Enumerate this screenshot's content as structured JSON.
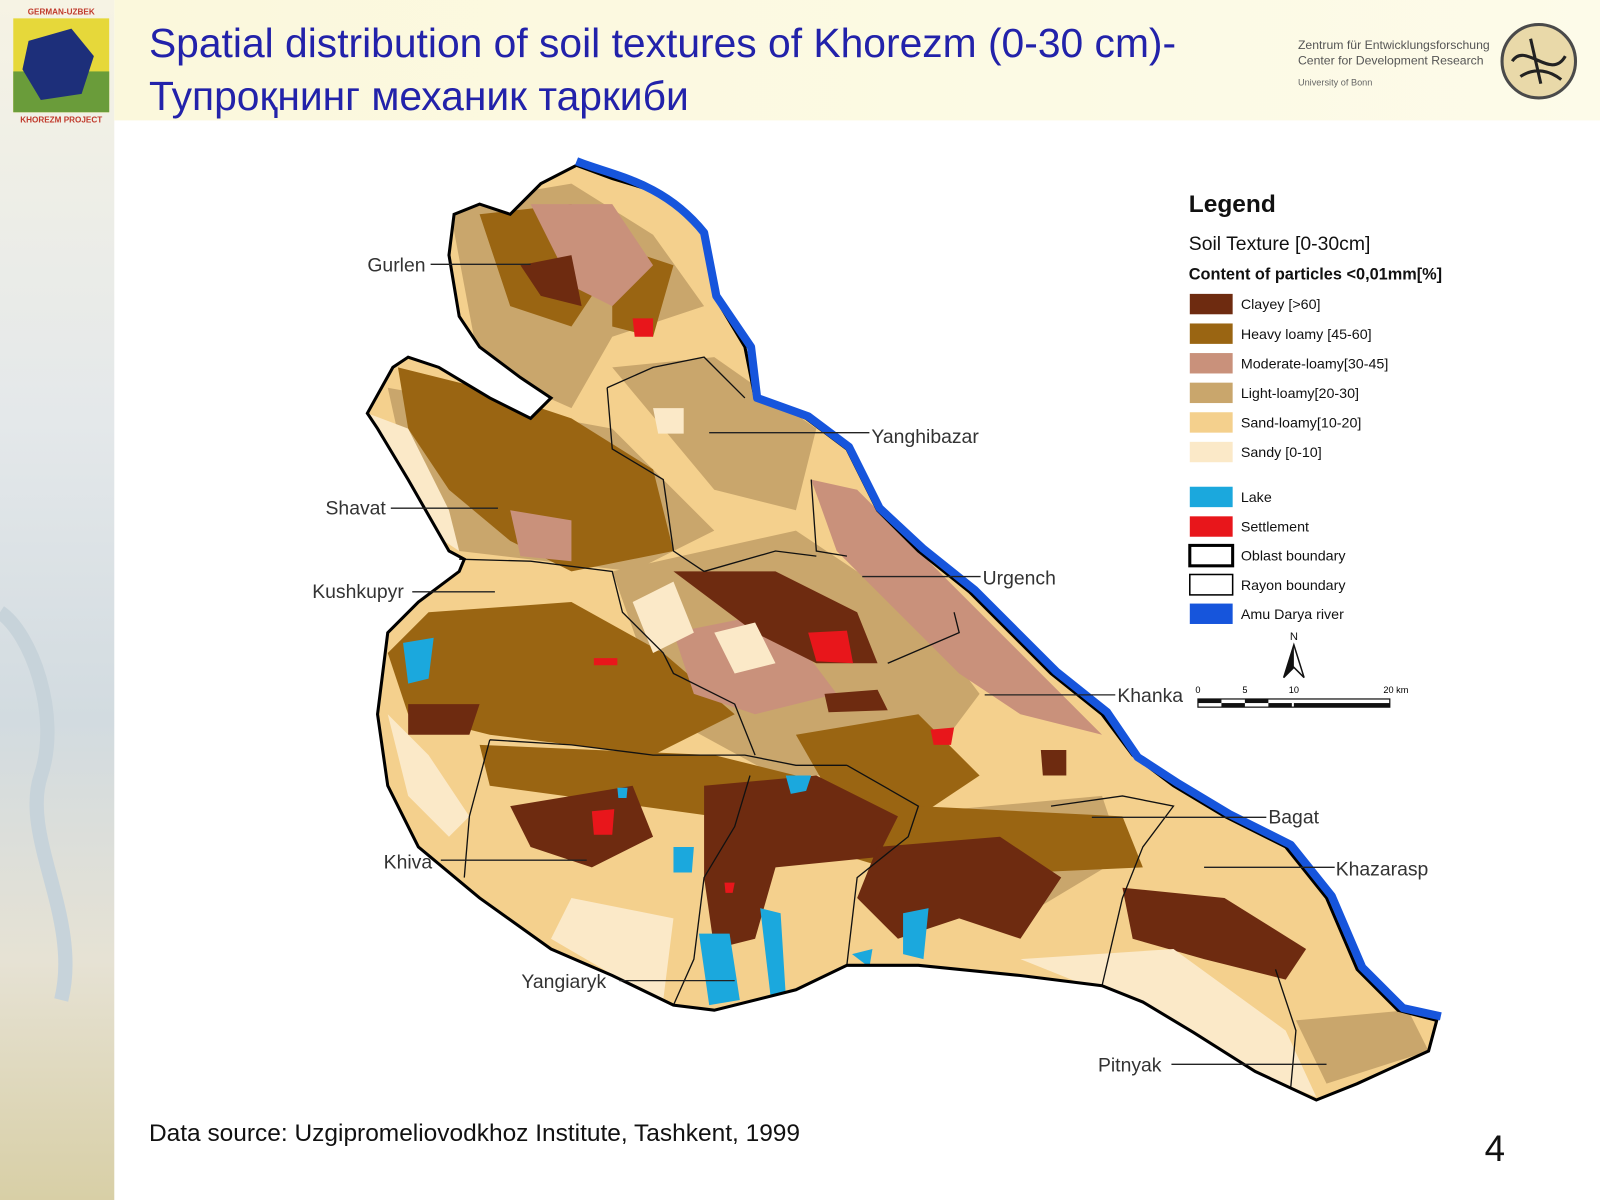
{
  "header": {
    "logo_top": "GERMAN-UZBEK",
    "logo_bottom": "KHOREZM PROJECT",
    "title_line1": "Spatial distribution of soil textures of Khorezm (0-30 cm)-",
    "title_line2": "Тупроқнинг механик таркиби",
    "institute": {
      "line1": "Zentrum für Entwicklungsforschung",
      "line2": "Center for Development Research",
      "line3": "University of Bonn"
    }
  },
  "map": {
    "districts": [
      "Gurlen",
      "Yanghibazar",
      "Shavat",
      "Urgench",
      "Kushkupyr",
      "Khanka",
      "Bagat",
      "Khiva",
      "Khazarasp",
      "Yangiaryk",
      "Pitnyak"
    ],
    "legend": {
      "title": "Legend",
      "subtitle": "Soil Texture [0-30cm]",
      "caption": "Content of particles <0,01mm[%]",
      "items": [
        {
          "label": "Clayey [>60]",
          "color": "#6e2b10",
          "style": "fill"
        },
        {
          "label": "Heavy loamy [45-60]",
          "color": "#9a6512",
          "style": "fill"
        },
        {
          "label": "Moderate-loamy[30-45]",
          "color": "#c9917b",
          "style": "fill"
        },
        {
          "label": "Light-loamy[20-30]",
          "color": "#c9a66c",
          "style": "fill"
        },
        {
          "label": "Sand-loamy[10-20]",
          "color": "#f4d08d",
          "style": "fill"
        },
        {
          "label": "Sandy [0-10]",
          "color": "#fbe9c8",
          "style": "fill"
        },
        {
          "label": "Lake",
          "color": "#1ba8dd",
          "style": "fill"
        },
        {
          "label": "Settlement",
          "color": "#e8161b",
          "style": "fill"
        },
        {
          "label": "Oblast boundary",
          "color": "#000000",
          "style": "outline-bold"
        },
        {
          "label": "Rayon boundary",
          "color": "#000000",
          "style": "outline"
        },
        {
          "label": "Amu Darya river",
          "color": "#1655dc",
          "style": "fill"
        }
      ]
    },
    "north": "N",
    "scale_labels": [
      "0",
      "5",
      "10",
      "20 km"
    ]
  },
  "footer": {
    "source": "Data source: Uzgipromeliovodkhoz Institute, Tashkent, 1999",
    "page_number": "4"
  }
}
